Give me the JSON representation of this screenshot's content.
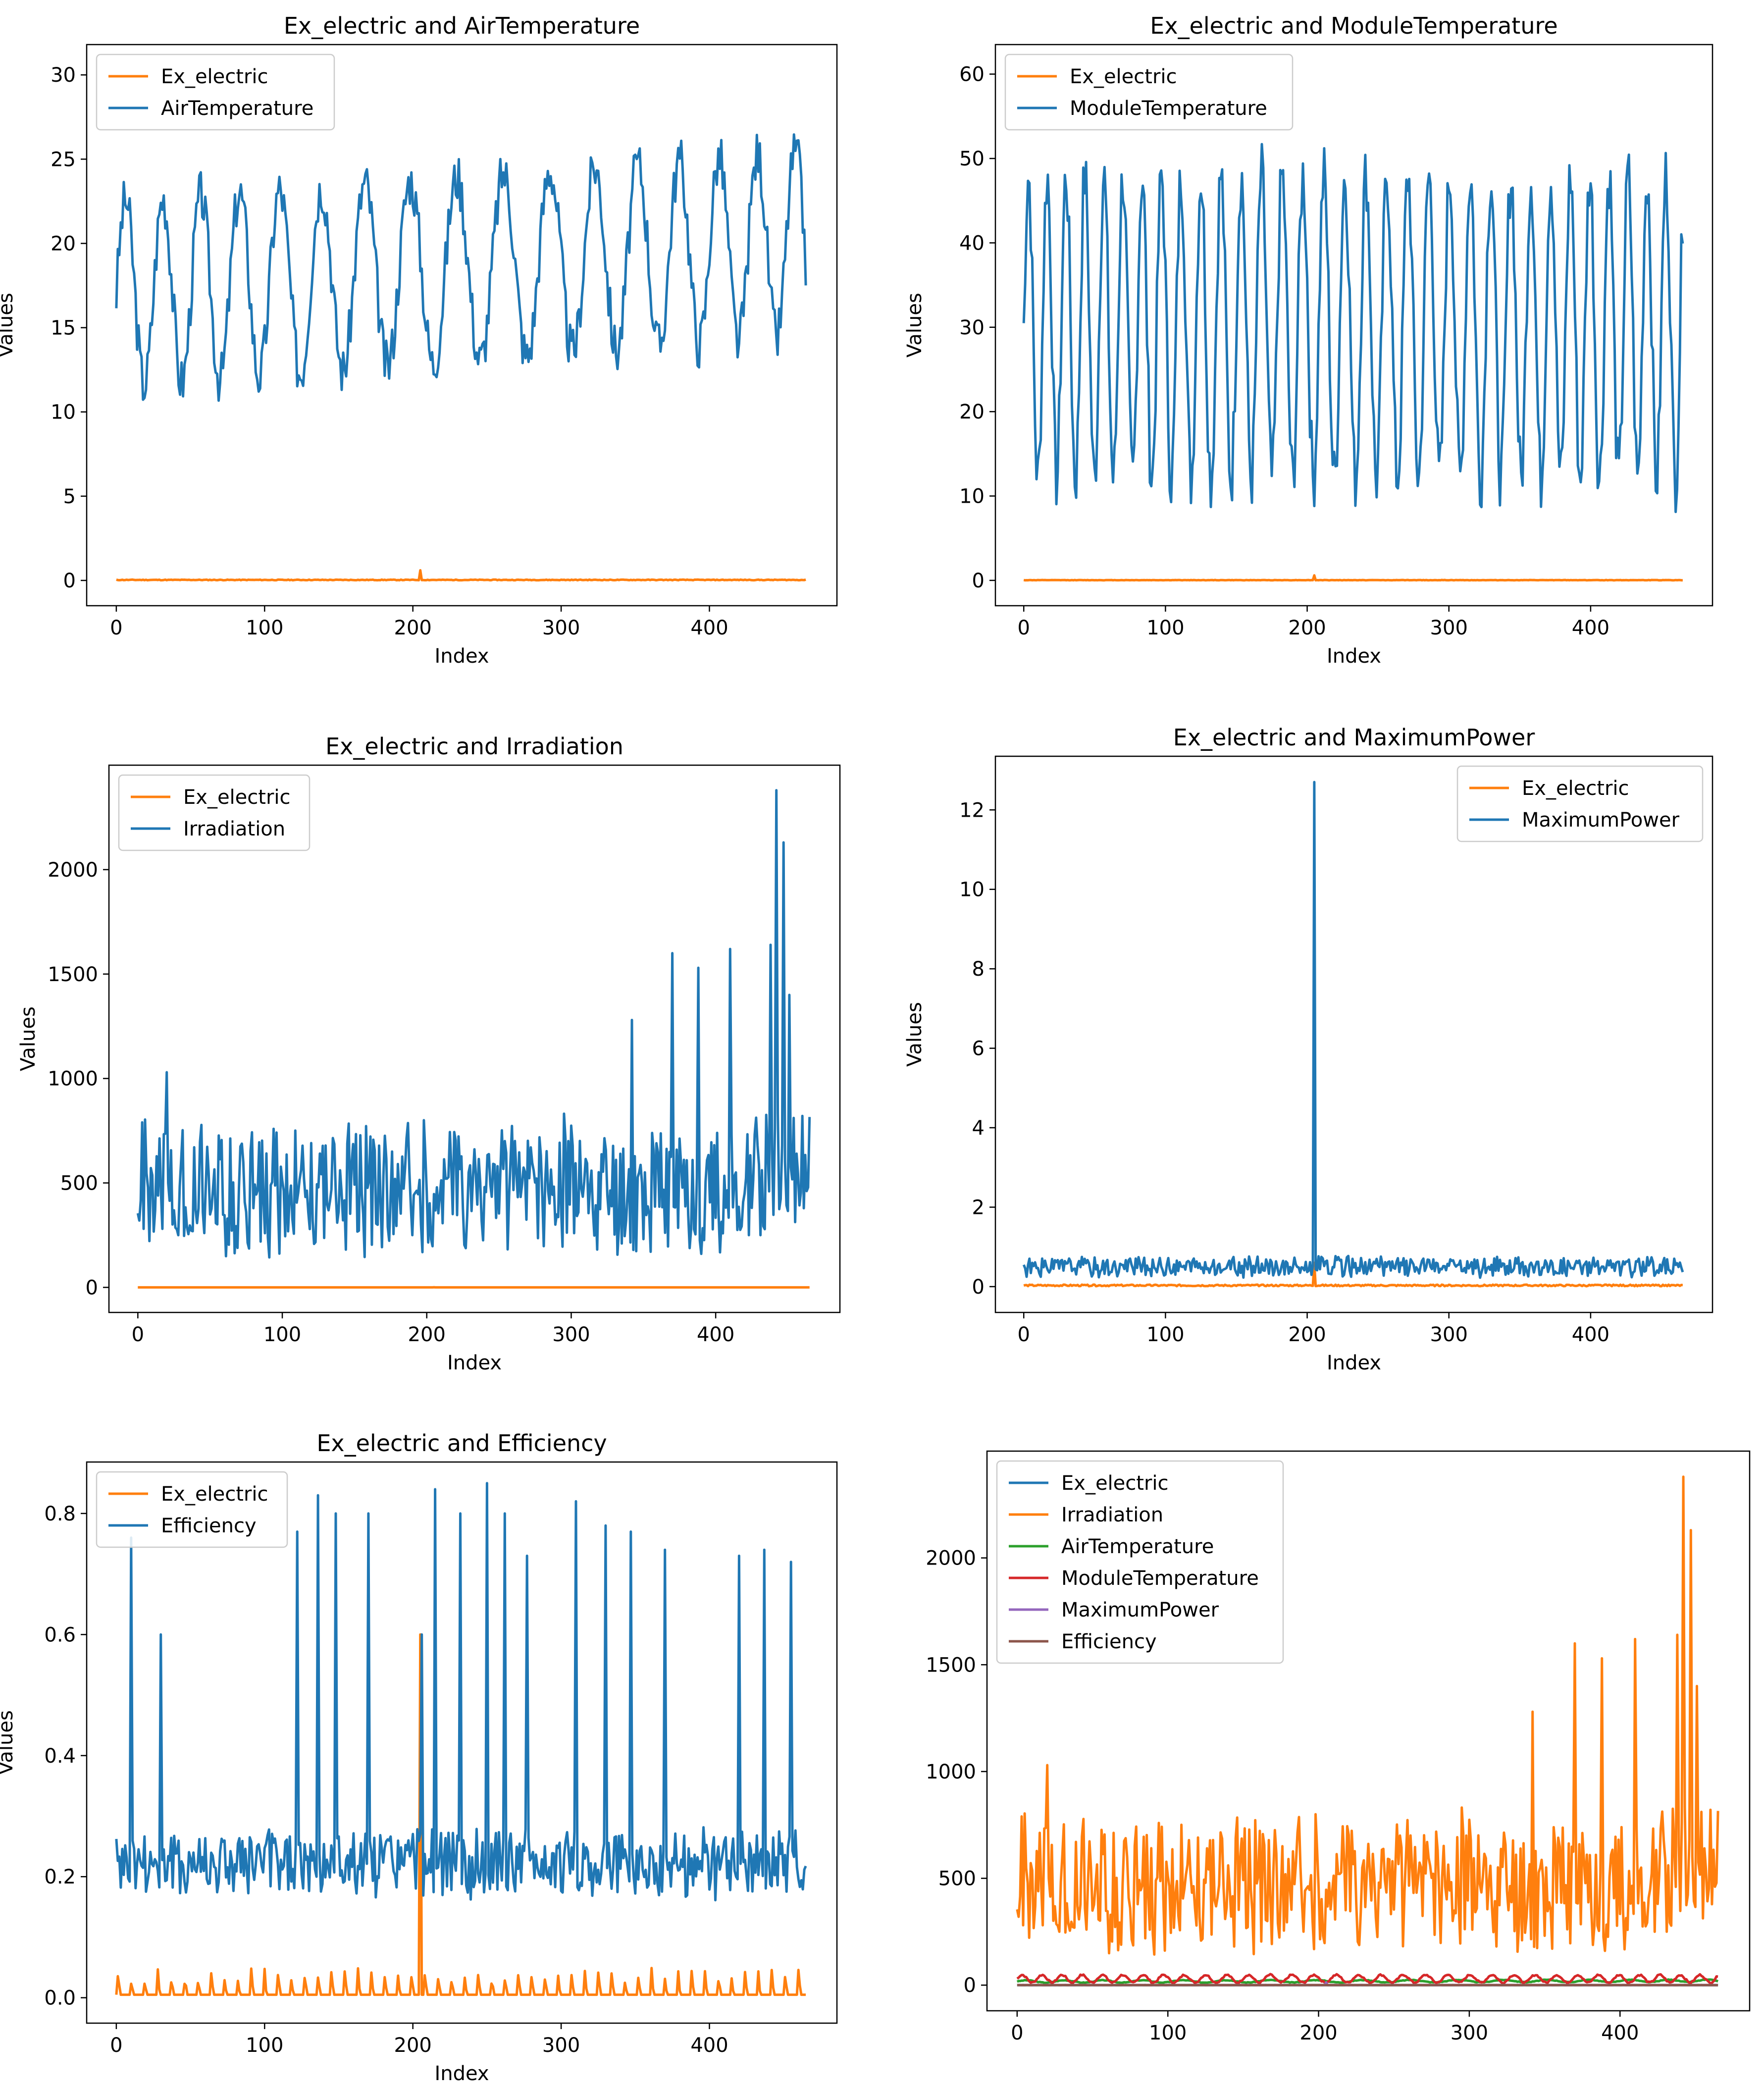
{
  "colors": {
    "blue": "#1f77b4",
    "orange": "#ff7f0e",
    "green": "#2ca02c",
    "red": "#d62728",
    "purple": "#9467bd",
    "brown": "#8c564b"
  },
  "chart_data": [
    {
      "type": "line",
      "title": "Ex_electric and AirTemperature",
      "xlabel": "Index",
      "ylabel": "Values",
      "xlim": [
        -20,
        486
      ],
      "ylim": [
        -1.5,
        31.8
      ],
      "xticks": [
        0,
        100,
        200,
        300,
        400
      ],
      "yticks": [
        0,
        5,
        10,
        15,
        20,
        25,
        30
      ],
      "legend": "upper-left",
      "x_points": 466,
      "series": [
        {
          "name": "Ex_electric",
          "color": "orange",
          "gen": "flat",
          "base": 0.03,
          "amp": 0.04,
          "seed": 11,
          "spikes": [
            [
              205,
              0.6
            ]
          ]
        },
        {
          "name": "AirTemperature",
          "color": "blue",
          "gen": "wave",
          "base": 17,
          "amp": 5.5,
          "period": 28,
          "noise": 1.5,
          "trend": 3,
          "clamp": [
            8.8,
            30.3
          ],
          "seed": 3
        }
      ]
    },
    {
      "type": "line",
      "title": "Ex_electric and ModuleTemperature",
      "xlabel": "Index",
      "ylabel": "Values",
      "xlim": [
        -20,
        486
      ],
      "ylim": [
        -3,
        63.5
      ],
      "xticks": [
        0,
        100,
        200,
        300,
        400
      ],
      "yticks": [
        0,
        10,
        20,
        30,
        40,
        50,
        60
      ],
      "legend": "upper-left",
      "x_points": 466,
      "series": [
        {
          "name": "Ex_electric",
          "color": "orange",
          "gen": "flat",
          "base": 0.03,
          "amp": 0.04,
          "seed": 12,
          "spikes": [
            [
              205,
              0.6
            ]
          ]
        },
        {
          "name": "ModuleTemperature",
          "color": "blue",
          "gen": "wave",
          "base": 30,
          "amp": 18,
          "period": 14,
          "noise": 4,
          "trend": 0,
          "clamp": [
            6.5,
            60.7
          ],
          "seed": 7
        }
      ]
    },
    {
      "type": "line",
      "title": "Ex_electric and Irradiation",
      "xlabel": "Index",
      "ylabel": "Values",
      "xlim": [
        -20,
        486
      ],
      "ylim": [
        -120,
        2500
      ],
      "xticks": [
        0,
        100,
        200,
        300,
        400
      ],
      "yticks": [
        0,
        500,
        1000,
        1500,
        2000
      ],
      "legend": "upper-left",
      "x_points": 466,
      "series": [
        {
          "name": "Ex_electric",
          "color": "orange",
          "gen": "flat",
          "base": 0.03,
          "amp": 0.04,
          "seed": 13,
          "spikes": [
            [
              205,
              0.6
            ]
          ]
        },
        {
          "name": "Irradiation",
          "color": "blue",
          "gen": "noise",
          "base": 480,
          "amp": 230,
          "seed": 21,
          "clamp": [
            50,
            2380
          ],
          "spikes": [
            [
              20,
              1030
            ],
            [
              342,
              1280
            ],
            [
              370,
              1600
            ],
            [
              388,
              1530
            ],
            [
              410,
              1620
            ],
            [
              438,
              1640
            ],
            [
              442,
              2380
            ],
            [
              447,
              2130
            ],
            [
              451,
              1400
            ]
          ]
        }
      ]
    },
    {
      "type": "line",
      "title": "Ex_electric and MaximumPower",
      "xlabel": "Index",
      "ylabel": "Values",
      "xlim": [
        -20,
        486
      ],
      "ylim": [
        -0.65,
        13.35
      ],
      "xticks": [
        0,
        100,
        200,
        300,
        400
      ],
      "yticks": [
        0,
        2,
        4,
        6,
        8,
        10,
        12
      ],
      "legend": "upper-right",
      "x_points": 466,
      "series": [
        {
          "name": "Ex_electric",
          "color": "orange",
          "gen": "flat",
          "base": 0.03,
          "amp": 0.04,
          "seed": 14,
          "spikes": [
            [
              205,
              0.6
            ]
          ]
        },
        {
          "name": "MaximumPower",
          "color": "blue",
          "gen": "noise",
          "base": 0.5,
          "amp": 0.18,
          "seed": 31,
          "clamp": [
            0.2,
            12.7
          ],
          "spikes": [
            [
              205,
              12.7
            ]
          ]
        }
      ]
    },
    {
      "type": "line",
      "title": "Ex_electric and Efficiency",
      "xlabel": "Index",
      "ylabel": "Values",
      "xlim": [
        -20,
        486
      ],
      "ylim": [
        -0.042,
        0.885
      ],
      "xticks": [
        0,
        100,
        200,
        300,
        400
      ],
      "yticks": [
        0.0,
        0.2,
        0.4,
        0.6,
        0.8
      ],
      "legend": "upper-left",
      "x_points": 466,
      "series": [
        {
          "name": "Ex_electric",
          "color": "orange",
          "gen": "bumps",
          "base": 0.005,
          "amp": 0.045,
          "period": 9,
          "seed": 15,
          "spikes": [
            [
              205,
              0.6
            ]
          ]
        },
        {
          "name": "Efficiency",
          "color": "blue",
          "gen": "noise",
          "base": 0.22,
          "amp": 0.04,
          "seed": 41,
          "clamp": [
            0.03,
            0.85
          ],
          "spikes": [
            [
              10,
              0.76
            ],
            [
              30,
              0.6
            ],
            [
              122,
              0.77
            ],
            [
              136,
              0.83
            ],
            [
              148,
              0.8
            ],
            [
              170,
              0.8
            ],
            [
              206,
              0.6
            ],
            [
              215,
              0.84
            ],
            [
              232,
              0.8
            ],
            [
              250,
              0.85
            ],
            [
              262,
              0.8
            ],
            [
              277,
              0.73
            ],
            [
              310,
              0.82
            ],
            [
              330,
              0.78
            ],
            [
              347,
              0.77
            ],
            [
              370,
              0.74
            ],
            [
              420,
              0.73
            ],
            [
              437,
              0.74
            ],
            [
              455,
              0.72
            ]
          ]
        }
      ]
    },
    {
      "type": "line",
      "title": "",
      "xlabel": "",
      "ylabel": "",
      "xlim": [
        -20,
        486
      ],
      "ylim": [
        -120,
        2500
      ],
      "xticks": [
        0,
        100,
        200,
        300,
        400
      ],
      "yticks": [
        0,
        500,
        1000,
        1500,
        2000
      ],
      "legend": "upper-left",
      "x_points": 466,
      "series": [
        {
          "name": "Ex_electric",
          "color": "blue",
          "gen": "flat",
          "base": 0.03,
          "amp": 0.04,
          "seed": 16
        },
        {
          "name": "Irradiation",
          "color": "orange",
          "gen": "noise",
          "base": 480,
          "amp": 230,
          "seed": 21,
          "clamp": [
            50,
            2380
          ],
          "spikes": [
            [
              20,
              1030
            ],
            [
              342,
              1280
            ],
            [
              370,
              1600
            ],
            [
              388,
              1530
            ],
            [
              410,
              1620
            ],
            [
              438,
              1640
            ],
            [
              442,
              2380
            ],
            [
              447,
              2130
            ],
            [
              451,
              1400
            ]
          ]
        },
        {
          "name": "AirTemperature",
          "color": "green",
          "gen": "wave",
          "base": 17,
          "amp": 5.5,
          "period": 28,
          "noise": 1.5,
          "trend": 3,
          "clamp": [
            8.8,
            30.3
          ],
          "seed": 3
        },
        {
          "name": "ModuleTemperature",
          "color": "red",
          "gen": "wave",
          "base": 30,
          "amp": 18,
          "period": 14,
          "noise": 4,
          "trend": 0,
          "clamp": [
            6.5,
            60.7
          ],
          "seed": 7
        },
        {
          "name": "MaximumPower",
          "color": "purple",
          "gen": "noise",
          "base": 0.5,
          "amp": 0.18,
          "seed": 31,
          "clamp": [
            0.2,
            12.7
          ],
          "spikes": [
            [
              205,
              12.7
            ]
          ]
        },
        {
          "name": "Efficiency",
          "color": "brown",
          "gen": "noise",
          "base": 0.22,
          "amp": 0.04,
          "seed": 41,
          "clamp": [
            0.03,
            0.85
          ]
        }
      ]
    }
  ]
}
